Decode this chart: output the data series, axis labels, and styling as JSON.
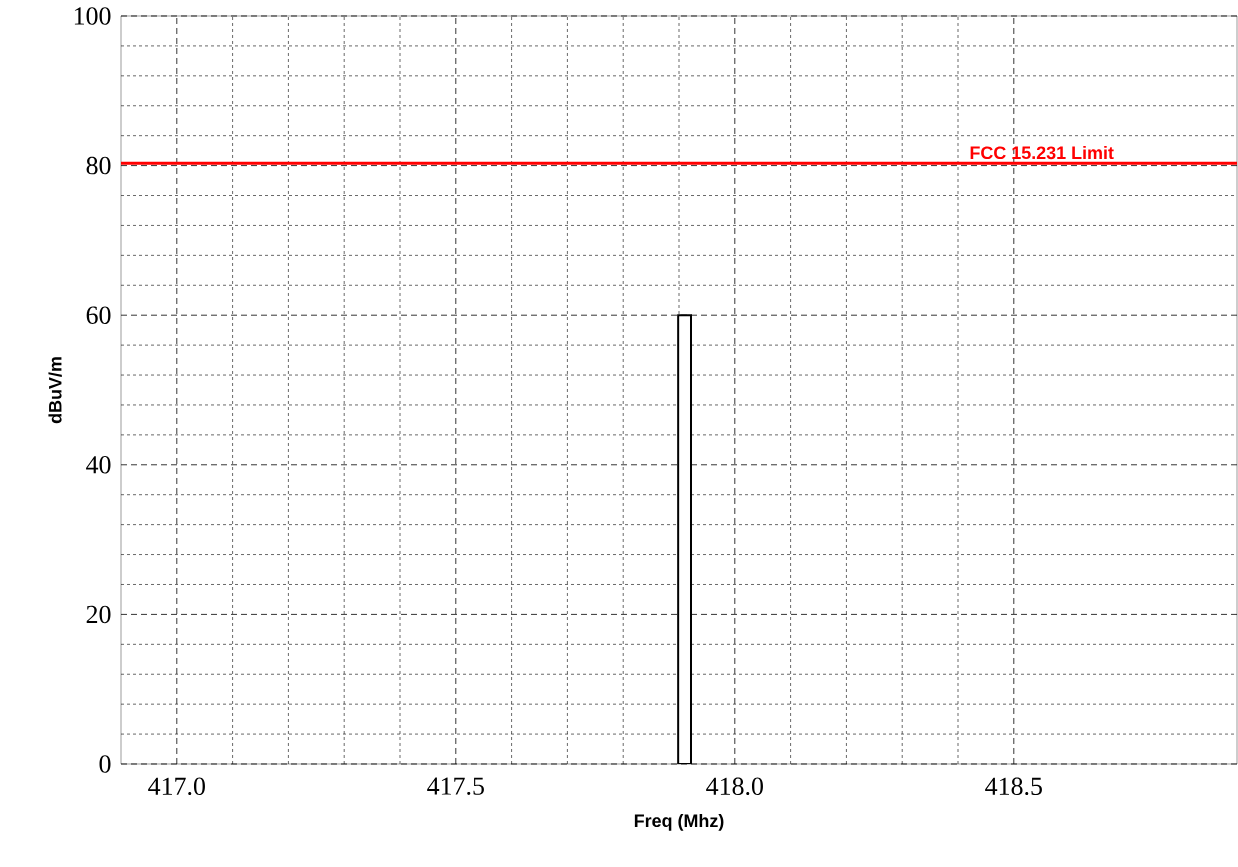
{
  "chart_data": {
    "type": "bar",
    "xlabel": "Freq (Mhz)",
    "ylabel": "dBuV/m",
    "x": [
      417.91
    ],
    "series": [
      {
        "color": "#000000",
        "values": [
          60
        ]
      }
    ],
    "xlim": [
      416.9,
      418.9
    ],
    "ylim": [
      0,
      100
    ],
    "xticks": [
      {
        "value": 417,
        "label": "417.0"
      },
      {
        "value": 417.5,
        "label": "417.5"
      },
      {
        "value": 418,
        "label": "418.0"
      },
      {
        "value": 418.5,
        "label": "418.5"
      }
    ],
    "yticks": [
      0,
      20,
      40,
      60,
      80,
      100
    ],
    "grid": true,
    "ref_lines": [
      {
        "axis": "y",
        "value": 80.3,
        "label": "FCC 15.231 Limit",
        "color": "#ff0000"
      }
    ]
  }
}
